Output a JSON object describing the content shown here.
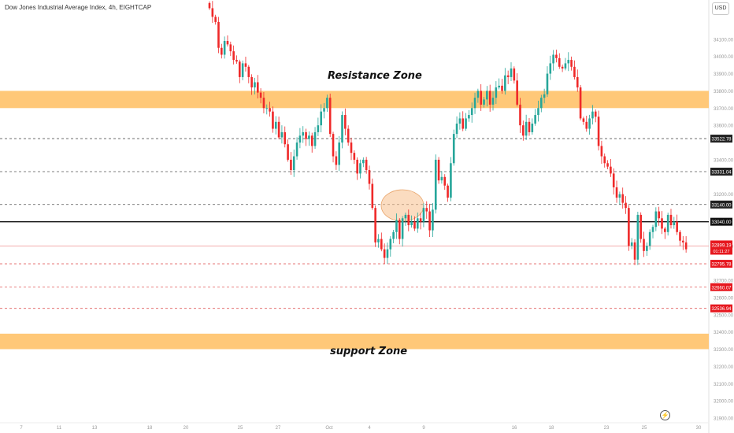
{
  "header": {
    "symbol_title": "Dow Jones Industrial Average Index, 4h, EIGHTCAP",
    "currency_button": "USD"
  },
  "annotations": {
    "resistance_label": "Resistance Zone",
    "support_label": "support Zone"
  },
  "colors": {
    "bull": "#26a69a",
    "bear": "#ef2929",
    "zone": "#ffc878",
    "ellipse": "#f7bf8c",
    "level_line": "#111111",
    "price_tag": "#e6171e"
  },
  "icons": {
    "replay": "lightning-bolt-icon"
  },
  "chart_data": {
    "type": "candlestick",
    "title": "Dow Jones Industrial Average Index, 4h, EIGHTCAP",
    "y_axis": {
      "range": [
        31900,
        34250
      ],
      "ticks": [
        "34100.00",
        "34000.00",
        "33900.00",
        "33800.00",
        "33700.00",
        "33600.00",
        "33400.00",
        "33200.00",
        "32900.00",
        "32700.00",
        "32600.00",
        "32500.00",
        "32400.00",
        "32300.00",
        "32200.00",
        "32100.00",
        "32000.00",
        "31900.00"
      ]
    },
    "x_axis": {
      "labels": [
        "7",
        "11",
        "13",
        "18",
        "20",
        "25",
        "27",
        "Oct",
        "4",
        "9",
        "16",
        "18",
        "23",
        "25",
        "30"
      ]
    },
    "zones": [
      {
        "name": "Resistance Zone",
        "from": 33700,
        "to": 33800
      },
      {
        "name": "support Zone",
        "from": 32300,
        "to": 32390
      }
    ],
    "horizontal_levels": [
      {
        "price": 33522.78,
        "label": "33522.78",
        "style": "dashed"
      },
      {
        "price": 33331.04,
        "label": "33331.04",
        "style": "dashed"
      },
      {
        "price": 33140.0,
        "label": "33140.00",
        "style": "dashed"
      },
      {
        "price": 33040.0,
        "label": "33040.00",
        "style": "solid"
      },
      {
        "price": 32795.78,
        "label": "32795.78",
        "style": "dashed"
      },
      {
        "price": 32660.07,
        "label": "32660.07",
        "style": "dashed"
      },
      {
        "price": 32536.94,
        "label": "32536.94",
        "style": "dashed"
      }
    ],
    "last_price": {
      "price": 32899.19,
      "label": "32899.19",
      "countdown": "01:11:27"
    },
    "closes": [
      34280,
      34230,
      34200,
      34050,
      34010,
      34090,
      34070,
      34030,
      33980,
      33970,
      33880,
      33960,
      33940,
      33880,
      33820,
      33850,
      33790,
      33760,
      33700,
      33700,
      33680,
      33580,
      33620,
      33530,
      33560,
      33490,
      33400,
      33340,
      33420,
      33500,
      33540,
      33560,
      33520,
      33540,
      33480,
      33560,
      33600,
      33680,
      33700,
      33760,
      33550,
      33420,
      33370,
      33500,
      33660,
      33580,
      33500,
      33440,
      33400,
      33320,
      33380,
      33400,
      33340,
      33260,
      33120,
      32920,
      32940,
      32880,
      32830,
      32880,
      32940,
      32980,
      33050,
      32940,
      33060,
      33080,
      33020,
      33040,
      33000,
      33060,
      33040,
      33120,
      33100,
      32990,
      33110,
      33400,
      33280,
      33300,
      33250,
      33180,
      33380,
      33550,
      33610,
      33640,
      33580,
      33640,
      33660,
      33700,
      33760,
      33800,
      33720,
      33750,
      33800,
      33720,
      33760,
      33820,
      33830,
      33800,
      33890,
      33880,
      33930,
      33860,
      33720,
      33600,
      33540,
      33620,
      33560,
      33610,
      33660,
      33700,
      33760,
      33780,
      33900,
      33960,
      34010,
      33990,
      33940,
      33930,
      33960,
      33980,
      33940,
      33880,
      33820,
      33640,
      33620,
      33580,
      33640,
      33680,
      33650,
      33480,
      33420,
      33380,
      33360,
      33320,
      33240,
      33180,
      33200,
      33150,
      33120,
      32900,
      32920,
      32820,
      33080,
      32940,
      32870,
      32900,
      32980,
      33010,
      33100,
      33060,
      33000,
      32980,
      33080,
      33020,
      33040,
      32980,
      32930,
      32920,
      32880
    ]
  }
}
